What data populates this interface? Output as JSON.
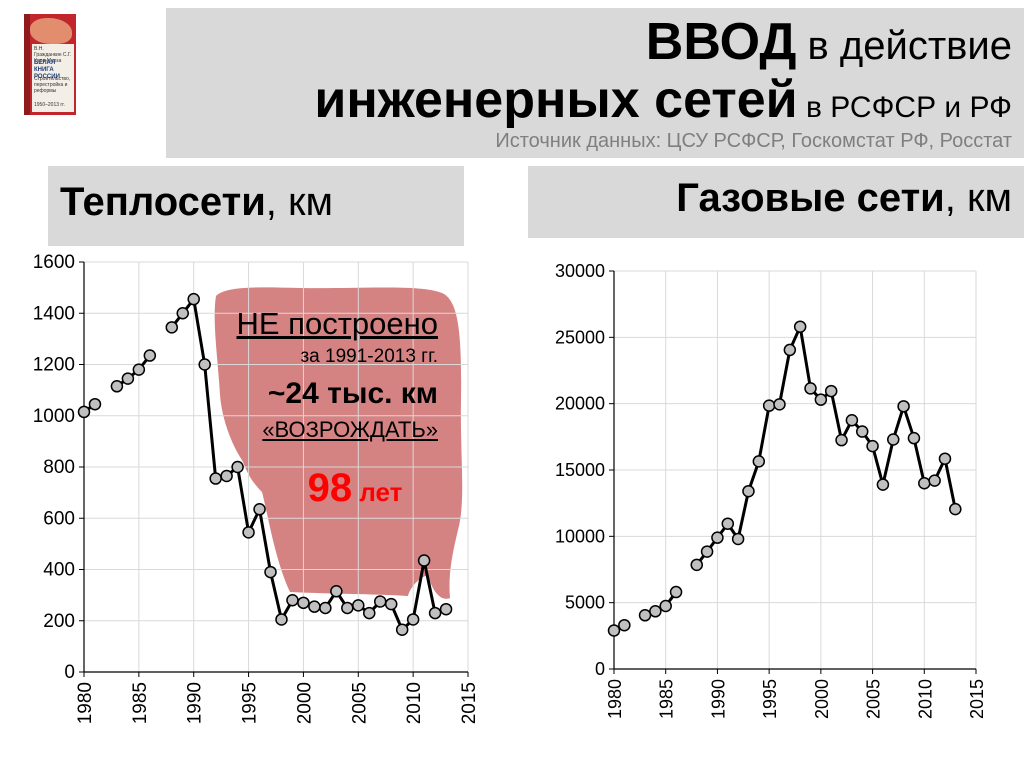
{
  "book": {
    "authors": "В.Н. Гражданкин С.Г. Кара-Мурза",
    "title": "БЕЛАЯ КНИГА РОССИИ",
    "subtitle": "Строительство, перестройка и реформы",
    "years": "1950–2013 гг."
  },
  "header": {
    "line1_bold": "ВВОД",
    "line1_rest": " в действие",
    "line2_bold": "инженерных сетей",
    "line2_rest": " в РСФСР и РФ",
    "source": "Источник данных: ЦСУ РСФСР, Госкомстат РФ, Росстат"
  },
  "left_panel": {
    "title_bold": "Теплосети",
    "title_rest": ", км"
  },
  "right_panel": {
    "title_bold": "Газовые сети",
    "title_rest": ", км"
  },
  "annotation": {
    "line1": "НЕ построено",
    "line2": "за 1991-2013 гг.",
    "line3_prefix": "~",
    "line3": "24 тыс. км",
    "line4": "«ВОЗРОЖДАТЬ»",
    "line5_num": "98",
    "line5_unit": " лет",
    "color_fill": "#cc6666",
    "color_accent": "#ff0000"
  },
  "chart_data": [
    {
      "type": "line",
      "xlim": [
        1980,
        2015
      ],
      "ylim": [
        0,
        1600
      ],
      "xticks": [
        1980,
        1985,
        1990,
        1995,
        2000,
        2005,
        2010,
        2015
      ],
      "yticks": [
        0,
        200,
        400,
        600,
        800,
        1000,
        1200,
        1400,
        1600
      ],
      "grid": true,
      "segments": [
        {
          "x": [
            1980,
            1981
          ],
          "y": [
            1015,
            1045
          ]
        },
        {
          "x": [
            1983,
            1984,
            1985,
            1986
          ],
          "y": [
            1115,
            1145,
            1180,
            1235
          ]
        },
        {
          "x": [
            1988,
            1989,
            1990,
            1991,
            1992,
            1993,
            1994,
            1995,
            1996,
            1997,
            1998,
            1999,
            2000,
            2001,
            2002,
            2003,
            2004,
            2005,
            2006,
            2007,
            2008,
            2009,
            2010,
            2011,
            2012,
            2013
          ],
          "y": [
            1345,
            1400,
            1455,
            1200,
            755,
            765,
            800,
            545,
            635,
            390,
            205,
            280,
            270,
            255,
            250,
            315,
            250,
            260,
            230,
            275,
            265,
            165,
            205,
            435,
            230,
            245
          ]
        }
      ]
    },
    {
      "type": "line",
      "xlim": [
        1980,
        2015
      ],
      "ylim": [
        0,
        30000
      ],
      "xticks": [
        1980,
        1985,
        1990,
        1995,
        2000,
        2005,
        2010,
        2015
      ],
      "yticks": [
        0,
        5000,
        10000,
        15000,
        20000,
        25000,
        30000
      ],
      "grid": true,
      "segments": [
        {
          "x": [
            1980,
            1981
          ],
          "y": [
            2900,
            3300
          ]
        },
        {
          "x": [
            1983,
            1984,
            1985,
            1986
          ],
          "y": [
            4050,
            4350,
            4750,
            5800
          ]
        },
        {
          "x": [
            1988,
            1989,
            1990,
            1991,
            1992,
            1993,
            1994,
            1995,
            1996,
            1997,
            1998,
            1999,
            2000,
            2001,
            2002,
            2003,
            2004,
            2005,
            2006,
            2007,
            2008,
            2009,
            2010,
            2011,
            2012,
            2013
          ],
          "y": [
            7850,
            8850,
            9900,
            10950,
            9800,
            13400,
            15650,
            19850,
            19950,
            24050,
            25800,
            21150,
            20300,
            20950,
            17250,
            18750,
            17900,
            16800,
            13900,
            17300,
            19800,
            17400,
            14000,
            14200,
            15850,
            12050
          ]
        }
      ]
    }
  ]
}
